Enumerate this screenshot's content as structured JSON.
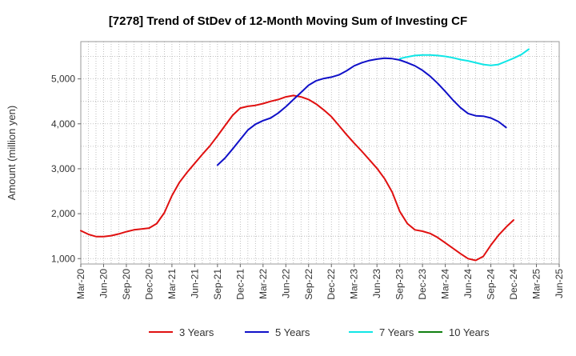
{
  "chart_data": {
    "type": "line",
    "title": "[7278]  Trend of StDev of 12-Month Moving Sum of Investing CF",
    "xlabel": "",
    "ylabel": "Amount (million yen)",
    "ylim": [
      880,
      5830
    ],
    "y_ticks": [
      1000,
      2000,
      3000,
      4000,
      5000
    ],
    "y_tick_labels": [
      "1,000",
      "2,000",
      "3,000",
      "4,000",
      "5,000"
    ],
    "x_tick_labels": [
      "Mar-20",
      "Jun-20",
      "Sep-20",
      "Dec-20",
      "Mar-21",
      "Jun-21",
      "Sep-21",
      "Dec-21",
      "Mar-22",
      "Jun-22",
      "Sep-22",
      "Dec-22",
      "Mar-23",
      "Jun-23",
      "Sep-23",
      "Dec-23",
      "Mar-24",
      "Jun-24",
      "Sep-24",
      "Dec-24",
      "Mar-25",
      "Jun-25"
    ],
    "grid": true,
    "legend_position": "bottom",
    "series": [
      {
        "name": "3 Years",
        "color": "#e01010",
        "start_month": 0,
        "values": [
          1620,
          1540,
          1490,
          1490,
          1510,
          1550,
          1600,
          1640,
          1660,
          1680,
          1780,
          2020,
          2400,
          2700,
          2920,
          3120,
          3320,
          3510,
          3730,
          3960,
          4190,
          4350,
          4390,
          4410,
          4450,
          4500,
          4540,
          4600,
          4630,
          4600,
          4540,
          4440,
          4310,
          4160,
          3960,
          3760,
          3570,
          3390,
          3200,
          3010,
          2780,
          2480,
          2050,
          1780,
          1640,
          1610,
          1560,
          1470,
          1350,
          1230,
          1110,
          1000,
          960,
          1050,
          1300,
          1520,
          1700,
          1860
        ]
      },
      {
        "name": "5 Years",
        "color": "#1010c8",
        "start_month": 18,
        "values": [
          3080,
          3240,
          3440,
          3650,
          3860,
          3990,
          4070,
          4130,
          4240,
          4380,
          4540,
          4700,
          4860,
          4960,
          5010,
          5040,
          5090,
          5180,
          5290,
          5360,
          5410,
          5440,
          5460,
          5450,
          5420,
          5360,
          5290,
          5190,
          5060,
          4900,
          4720,
          4530,
          4360,
          4230,
          4180,
          4170,
          4130,
          4050,
          3920
        ]
      },
      {
        "name": "7 Years",
        "color": "#10e6e6",
        "start_month": 42,
        "values": [
          5450,
          5490,
          5520,
          5530,
          5530,
          5520,
          5500,
          5470,
          5430,
          5400,
          5360,
          5320,
          5300,
          5320,
          5390,
          5460,
          5540,
          5660
        ]
      },
      {
        "name": "10 Years",
        "color": "#108010",
        "start_month": 0,
        "values": []
      }
    ]
  }
}
